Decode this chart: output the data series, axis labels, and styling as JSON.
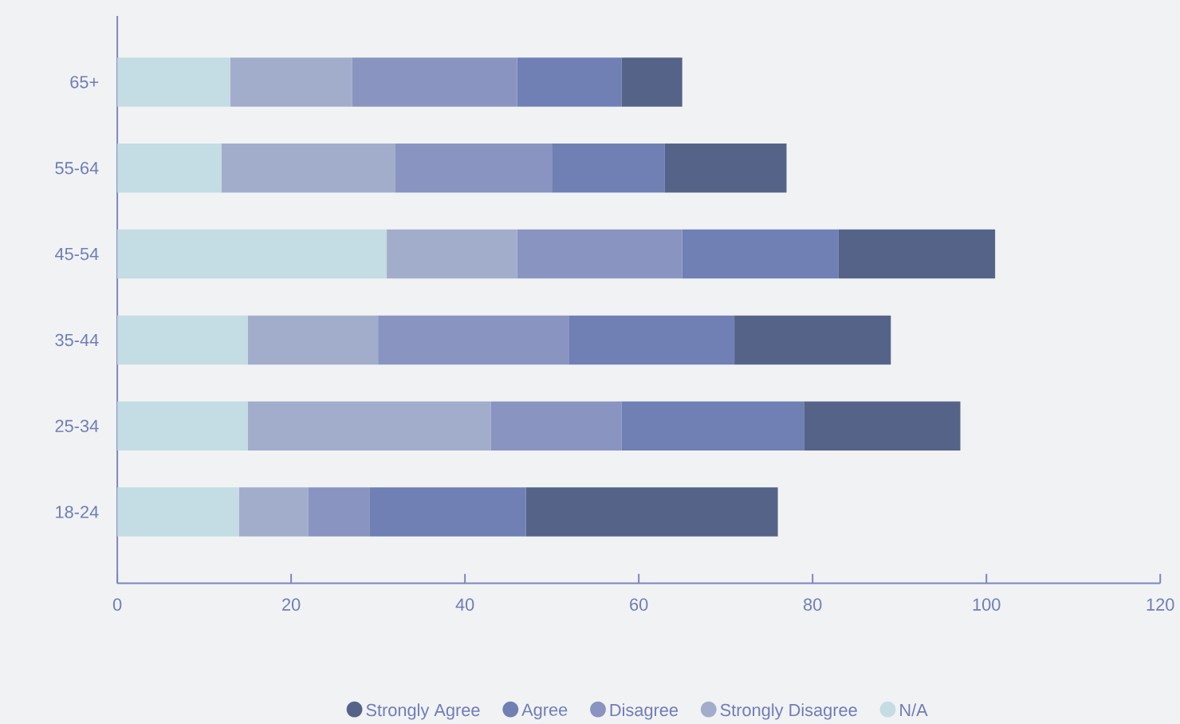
{
  "chart_data": {
    "type": "bar",
    "orientation": "horizontal",
    "stacked": true,
    "categories": [
      "65+",
      "55-64",
      "45-54",
      "35-44",
      "25-34",
      "18-24"
    ],
    "series": [
      {
        "name": "N/A",
        "color": "#c4dce3",
        "values": [
          13,
          12,
          31,
          15,
          15,
          14
        ]
      },
      {
        "name": "Strongly Disagree",
        "color": "#a2adcc",
        "values": [
          14,
          20,
          15,
          15,
          28,
          8
        ]
      },
      {
        "name": "Disagree",
        "color": "#8994c0",
        "values": [
          19,
          18,
          19,
          22,
          15,
          7
        ]
      },
      {
        "name": "Agree",
        "color": "#707fb4",
        "values": [
          12,
          13,
          18,
          19,
          21,
          18
        ]
      },
      {
        "name": "Strongly Agree",
        "color": "#556388",
        "values": [
          7,
          14,
          18,
          18,
          18,
          29
        ]
      }
    ],
    "xlim": [
      0,
      120
    ],
    "xticks": [
      0,
      20,
      40,
      60,
      80,
      100,
      120
    ],
    "grid": false,
    "legend": "bottom"
  }
}
